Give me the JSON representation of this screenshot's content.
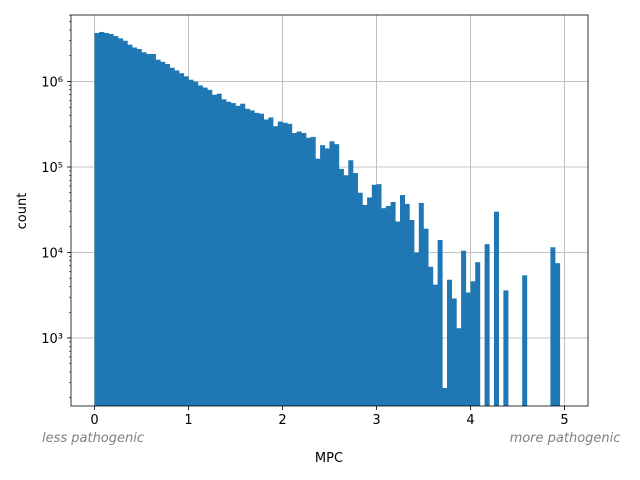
{
  "chart_data": {
    "type": "histogram",
    "title": "",
    "xlabel": "MPC",
    "ylabel": "count",
    "yscale": "log",
    "xlim": [
      -0.25,
      5.25
    ],
    "ylim": [
      160,
      6000000
    ],
    "grid": true,
    "color": "#1f77b4",
    "xticks": [
      0,
      1,
      2,
      3,
      4,
      5
    ],
    "xtick_labels": [
      "0",
      "1",
      "2",
      "3",
      "4",
      "5"
    ],
    "yticks": [
      1000,
      10000,
      100000,
      1000000
    ],
    "ytick_labels": [
      "10³",
      "10⁴",
      "10⁵",
      "10⁶"
    ],
    "annotations": {
      "left": "less pathogenic",
      "right": "more pathogenic"
    },
    "bin_width": 0.05,
    "bins_start": [
      0.0,
      0.05,
      0.1,
      0.15,
      0.2,
      0.25,
      0.3,
      0.35,
      0.4,
      0.45,
      0.5,
      0.55,
      0.6,
      0.65,
      0.7,
      0.75,
      0.8,
      0.85,
      0.9,
      0.95,
      1.0,
      1.05,
      1.1,
      1.15,
      1.2,
      1.25,
      1.3,
      1.35,
      1.4,
      1.45,
      1.5,
      1.55,
      1.6,
      1.65,
      1.7,
      1.75,
      1.8,
      1.85,
      1.9,
      1.95,
      2.0,
      2.05,
      2.1,
      2.15,
      2.2,
      2.25,
      2.3,
      2.35,
      2.4,
      2.45,
      2.5,
      2.55,
      2.6,
      2.65,
      2.7,
      2.75,
      2.8,
      2.85,
      2.9,
      2.95,
      3.0,
      3.05,
      3.1,
      3.15,
      3.2,
      3.25,
      3.3,
      3.35,
      3.4,
      3.45,
      3.5,
      3.55,
      3.6,
      3.65,
      3.7,
      3.75,
      3.8,
      3.85,
      3.9,
      3.95,
      4.0,
      4.05,
      4.1,
      4.15,
      4.2,
      4.25,
      4.3,
      4.35,
      4.4,
      4.45,
      4.5,
      4.55,
      4.6,
      4.65,
      4.7,
      4.75,
      4.8,
      4.85,
      4.9,
      4.95
    ],
    "counts": [
      3700000,
      3800000,
      3700000,
      3600000,
      3400000,
      3200000,
      3000000,
      2700000,
      2500000,
      2400000,
      2200000,
      2100000,
      2100000,
      1800000,
      1700000,
      1600000,
      1450000,
      1350000,
      1250000,
      1150000,
      1050000,
      1000000,
      900000,
      850000,
      800000,
      700000,
      720000,
      620000,
      580000,
      560000,
      520000,
      550000,
      480000,
      460000,
      430000,
      420000,
      360000,
      380000,
      300000,
      340000,
      330000,
      320000,
      250000,
      260000,
      250000,
      220000,
      225000,
      125000,
      180000,
      165000,
      200000,
      185000,
      95000,
      80000,
      120000,
      85000,
      50000,
      36000,
      44000,
      62000,
      63000,
      33000,
      35000,
      39000,
      23000,
      47000,
      37000,
      24000,
      10000,
      38000,
      19000,
      6800,
      4200,
      14000,
      260,
      4800,
      2900,
      1300,
      10500,
      3400,
      4600,
      7700,
      0,
      12500,
      0,
      30000,
      0,
      3600,
      0,
      0,
      0,
      5400,
      0,
      0,
      0,
      0,
      0,
      11500,
      7500,
      0
    ]
  }
}
